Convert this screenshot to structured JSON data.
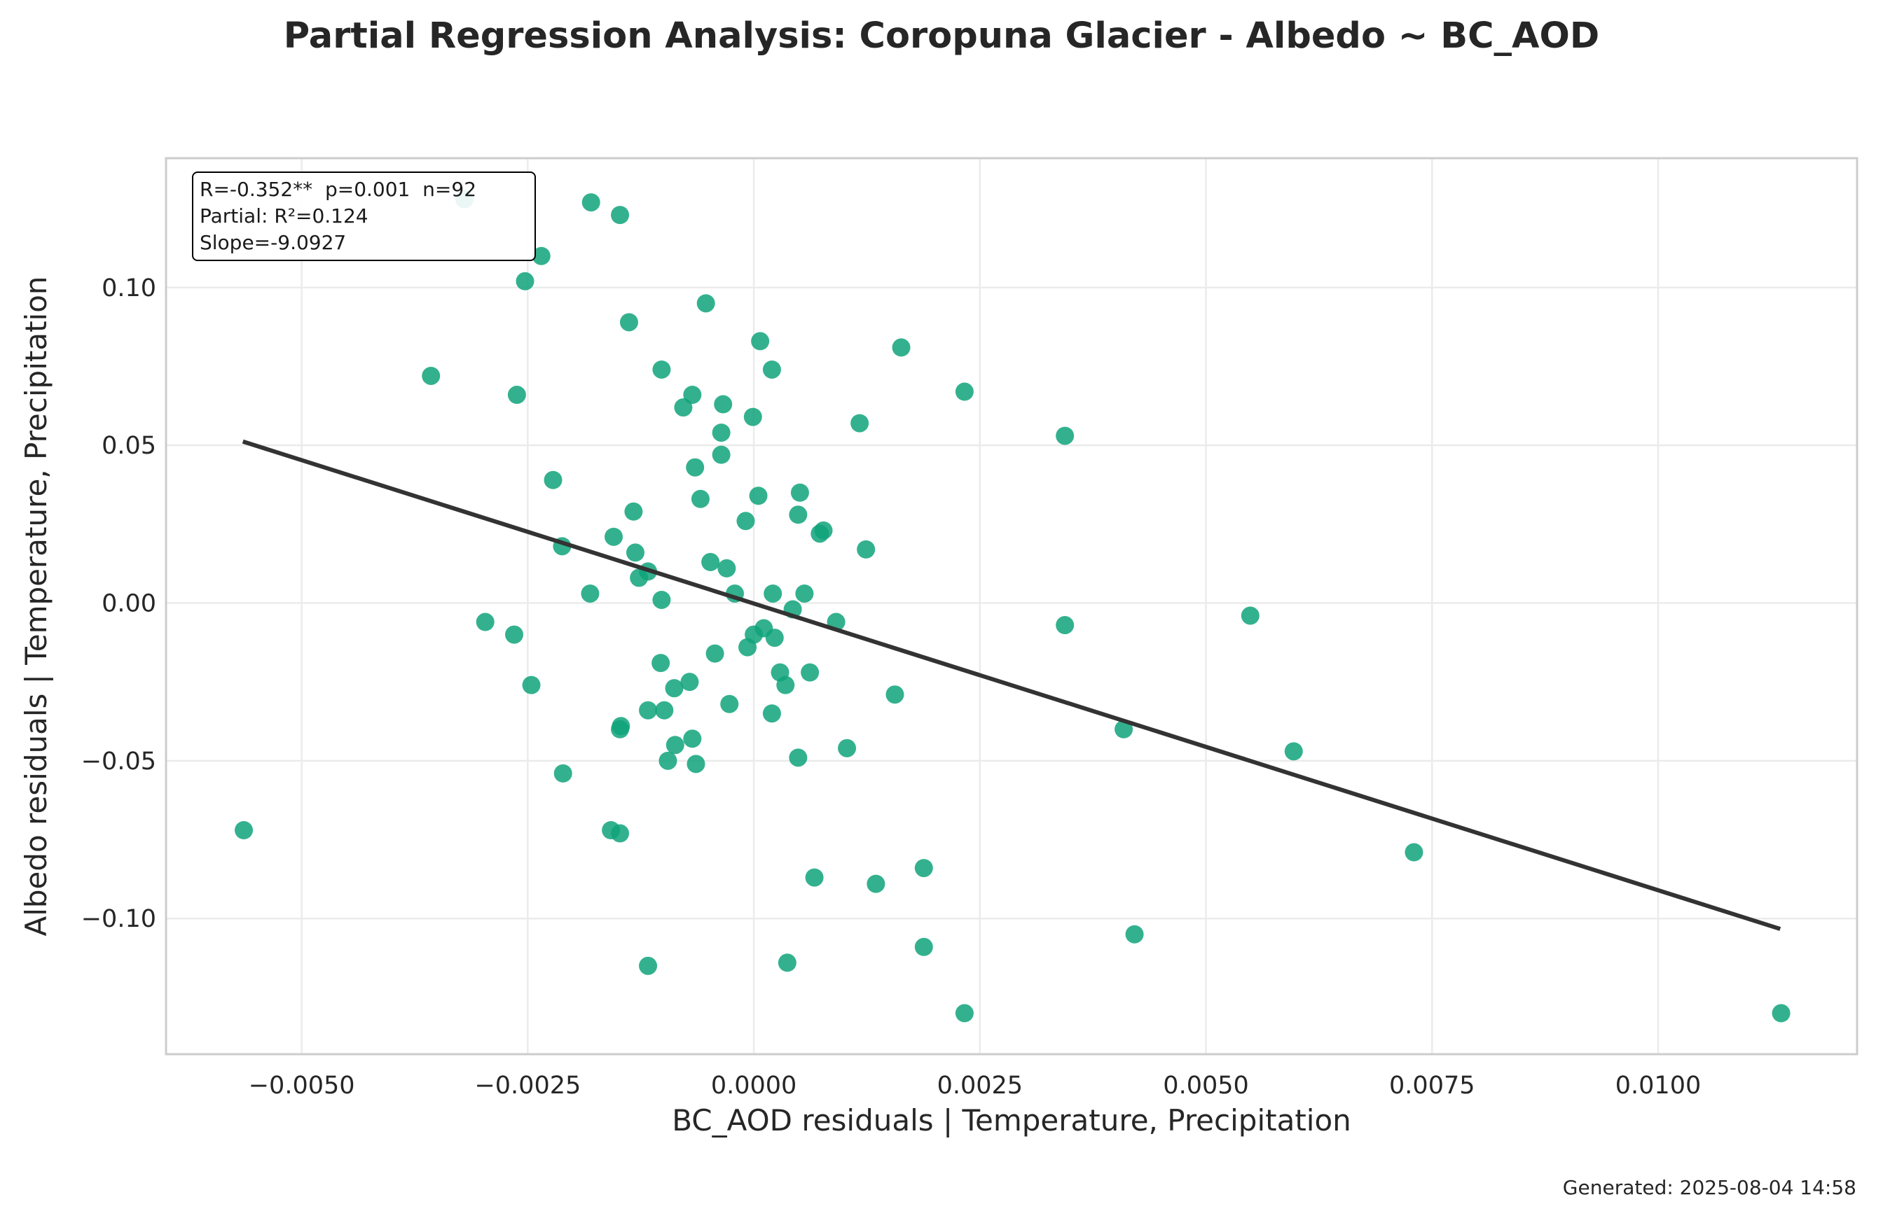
{
  "title": "Partial Regression Analysis: Coropuna Glacier - Albedo ~ BC_AOD",
  "footer": "Generated: 2025-08-04 14:58",
  "colors": {
    "points": "#0fa37a",
    "fit_line": "#333333",
    "grid": "#ebebeb",
    "frame": "#cccccc"
  },
  "chart_data": {
    "type": "scatter",
    "xlabel": "BC_AOD residuals | Temperature, Precipitation",
    "ylabel": "Albedo residuals | Temperature, Precipitation",
    "xlim": [
      -0.0065,
      0.0122
    ],
    "ylim": [
      -0.143,
      0.141
    ],
    "x_ticks": [
      -0.005,
      -0.0025,
      0.0,
      0.0025,
      0.005,
      0.0075,
      0.01
    ],
    "x_tick_labels": [
      "−0.0050",
      "−0.0025",
      "0.0000",
      "0.0025",
      "0.0050",
      "0.0075",
      "0.0100"
    ],
    "y_ticks": [
      -0.1,
      -0.05,
      0.0,
      0.05,
      0.1
    ],
    "y_tick_labels": [
      "−0.10",
      "−0.05",
      "0.00",
      "0.05",
      "0.10"
    ],
    "grid": true,
    "annotation": [
      "R=-0.352**  p=0.001  n=92",
      "Partial: R²=0.124",
      "Slope=-9.0927"
    ],
    "annotation_position": "top-left",
    "fit_line": {
      "x": [
        -0.00565,
        0.01135
      ],
      "y": [
        0.0512,
        -0.1033
      ]
    },
    "points": [
      {
        "x": -0.0032,
        "y": 0.128
      },
      {
        "x": -0.0018,
        "y": 0.127
      },
      {
        "x": -0.00148,
        "y": 0.123
      },
      {
        "x": -0.00235,
        "y": 0.11
      },
      {
        "x": -0.00253,
        "y": 0.102
      },
      {
        "x": -0.00053,
        "y": 0.095
      },
      {
        "x": -0.00138,
        "y": 0.089
      },
      {
        "x": 7e-05,
        "y": 0.083
      },
      {
        "x": 0.00163,
        "y": 0.081
      },
      {
        "x": -0.00357,
        "y": 0.072
      },
      {
        "x": -0.00102,
        "y": 0.074
      },
      {
        "x": 0.0002,
        "y": 0.074
      },
      {
        "x": -0.00068,
        "y": 0.066
      },
      {
        "x": -0.00262,
        "y": 0.066
      },
      {
        "x": 0.00233,
        "y": 0.067
      },
      {
        "x": -0.00034,
        "y": 0.063
      },
      {
        "x": -0.00078,
        "y": 0.062
      },
      {
        "x": -1e-05,
        "y": 0.059
      },
      {
        "x": 0.00117,
        "y": 0.057
      },
      {
        "x": -0.00036,
        "y": 0.054
      },
      {
        "x": 0.00344,
        "y": 0.053
      },
      {
        "x": -0.00036,
        "y": 0.047
      },
      {
        "x": -0.00065,
        "y": 0.043
      },
      {
        "x": -0.00222,
        "y": 0.039
      },
      {
        "x": 0.00051,
        "y": 0.035
      },
      {
        "x": -0.00059,
        "y": 0.033
      },
      {
        "x": 5e-05,
        "y": 0.034
      },
      {
        "x": -0.00133,
        "y": 0.029
      },
      {
        "x": 0.00049,
        "y": 0.028
      },
      {
        "x": -9e-05,
        "y": 0.026
      },
      {
        "x": 0.00077,
        "y": 0.023
      },
      {
        "x": 0.00073,
        "y": 0.022
      },
      {
        "x": -0.00155,
        "y": 0.021
      },
      {
        "x": -0.00212,
        "y": 0.018
      },
      {
        "x": -0.00131,
        "y": 0.016
      },
      {
        "x": 0.00124,
        "y": 0.017
      },
      {
        "x": -0.00048,
        "y": 0.013
      },
      {
        "x": -0.0003,
        "y": 0.011
      },
      {
        "x": -0.00117,
        "y": 0.01
      },
      {
        "x": -0.00127,
        "y": 0.008
      },
      {
        "x": -0.00021,
        "y": 0.003
      },
      {
        "x": 0.00021,
        "y": 0.003
      },
      {
        "x": 0.00056,
        "y": 0.003
      },
      {
        "x": -0.00181,
        "y": 0.003
      },
      {
        "x": -0.00102,
        "y": 0.001
      },
      {
        "x": 0.00043,
        "y": -0.002
      },
      {
        "x": -0.00297,
        "y": -0.006
      },
      {
        "x": 0.00091,
        "y": -0.006
      },
      {
        "x": 0.00344,
        "y": -0.007
      },
      {
        "x": 0.00549,
        "y": -0.004
      },
      {
        "x": -0.00265,
        "y": -0.01
      },
      {
        "x": 0.00011,
        "y": -0.008
      },
      {
        "x": 0.0,
        "y": -0.01
      },
      {
        "x": 0.00023,
        "y": -0.011
      },
      {
        "x": -7e-05,
        "y": -0.014
      },
      {
        "x": -0.00043,
        "y": -0.016
      },
      {
        "x": -0.00103,
        "y": -0.019
      },
      {
        "x": 0.00029,
        "y": -0.022
      },
      {
        "x": 0.00062,
        "y": -0.022
      },
      {
        "x": 0.00035,
        "y": -0.026
      },
      {
        "x": -0.00071,
        "y": -0.025
      },
      {
        "x": -0.00088,
        "y": -0.027
      },
      {
        "x": -0.00246,
        "y": -0.026
      },
      {
        "x": 0.00156,
        "y": -0.029
      },
      {
        "x": -0.00027,
        "y": -0.032
      },
      {
        "x": -0.00117,
        "y": -0.034
      },
      {
        "x": -0.00099,
        "y": -0.034
      },
      {
        "x": 0.0002,
        "y": -0.035
      },
      {
        "x": -0.00147,
        "y": -0.039
      },
      {
        "x": -0.00148,
        "y": -0.04
      },
      {
        "x": 0.00409,
        "y": -0.04
      },
      {
        "x": -0.00068,
        "y": -0.043
      },
      {
        "x": -0.00087,
        "y": -0.045
      },
      {
        "x": 0.00103,
        "y": -0.046
      },
      {
        "x": 0.00597,
        "y": -0.047
      },
      {
        "x": 0.00049,
        "y": -0.049
      },
      {
        "x": -0.00095,
        "y": -0.05
      },
      {
        "x": -0.00064,
        "y": -0.051
      },
      {
        "x": -0.00211,
        "y": -0.054
      },
      {
        "x": -0.00158,
        "y": -0.072
      },
      {
        "x": -0.00148,
        "y": -0.073
      },
      {
        "x": -0.00564,
        "y": -0.072
      },
      {
        "x": 0.0073,
        "y": -0.079
      },
      {
        "x": 0.00188,
        "y": -0.084
      },
      {
        "x": 0.00067,
        "y": -0.087
      },
      {
        "x": 0.00135,
        "y": -0.089
      },
      {
        "x": 0.00421,
        "y": -0.105
      },
      {
        "x": 0.00188,
        "y": -0.109
      },
      {
        "x": 0.00037,
        "y": -0.114
      },
      {
        "x": -0.00117,
        "y": -0.115
      },
      {
        "x": 0.00233,
        "y": -0.13
      },
      {
        "x": 0.01136,
        "y": -0.13
      }
    ]
  }
}
